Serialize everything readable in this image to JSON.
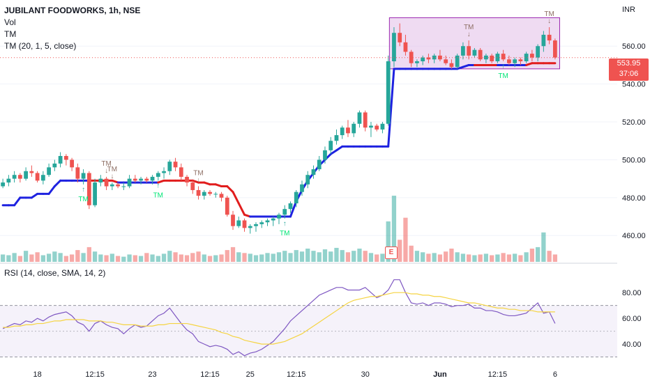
{
  "legend": {
    "title": "JUBILANT FOODWORKS, 1h, NSE",
    "vol": "Vol",
    "tm": "TM",
    "tm_params": "TM (20, 1, 5, close)"
  },
  "rsi_legend": "RSI (14, close, SMA, 14, 2)",
  "currency": "INR",
  "last_price": "553.95",
  "countdown": "37:06",
  "earnings_badge": "E",
  "colors": {
    "up": "#26a69a",
    "down": "#ef5350",
    "tm_up": "#1e22e0",
    "tm_down": "#e11d1d",
    "rsi_line": "#7e57c2",
    "rsi_sma": "#f5d442",
    "box_fill": "#e1bee7",
    "box_stroke": "#9c27b0"
  },
  "chart_data": [
    {
      "type": "candlestick",
      "title": "JUBILANT FOODWORKS, 1h, NSE",
      "currency": "INR",
      "y_ticks": [
        "460.00",
        "480.00",
        "500.00",
        "520.00",
        "540.00",
        "560.00"
      ],
      "ylim": [
        452,
        577
      ],
      "x_ticks": [
        "18",
        "12:15",
        "23",
        "12:15",
        "25",
        "12:15",
        "30",
        "Jun",
        "12:15",
        "6"
      ],
      "last_price": 553.95,
      "ohlc": [
        [
          486,
          490,
          485,
          488
        ],
        [
          488,
          492,
          486,
          490
        ],
        [
          490,
          494,
          488,
          492
        ],
        [
          492,
          493,
          488,
          490
        ],
        [
          490,
          496,
          489,
          494
        ],
        [
          494,
          497,
          491,
          493
        ],
        [
          493,
          494,
          488,
          489
        ],
        [
          489,
          494,
          487,
          492
        ],
        [
          492,
          498,
          491,
          496
        ],
        [
          496,
          500,
          494,
          498
        ],
        [
          498,
          504,
          496,
          502
        ],
        [
          502,
          503,
          497,
          500
        ],
        [
          500,
          501,
          494,
          496
        ],
        [
          496,
          498,
          488,
          490
        ],
        [
          490,
          495,
          487,
          493
        ],
        [
          493,
          494,
          474,
          476
        ],
        [
          476,
          490,
          475,
          488
        ],
        [
          488,
          492,
          486,
          490
        ],
        [
          490,
          491,
          484,
          486
        ],
        [
          486,
          488,
          484,
          487
        ],
        [
          487,
          488,
          485,
          486
        ],
        [
          486,
          488,
          484,
          486
        ],
        [
          486,
          492,
          485,
          490
        ],
        [
          490,
          492,
          488,
          489
        ],
        [
          489,
          491,
          487,
          490
        ],
        [
          490,
          491,
          488,
          489
        ],
        [
          489,
          492,
          487,
          491
        ],
        [
          491,
          494,
          489,
          493
        ],
        [
          493,
          496,
          490,
          494
        ],
        [
          494,
          500,
          492,
          499
        ],
        [
          499,
          501,
          494,
          496
        ],
        [
          496,
          498,
          489,
          491
        ],
        [
          491,
          492,
          486,
          488
        ],
        [
          488,
          489,
          482,
          484
        ],
        [
          484,
          486,
          479,
          481
        ],
        [
          481,
          484,
          479,
          483
        ],
        [
          483,
          484,
          481,
          482
        ],
        [
          482,
          483,
          480,
          482
        ],
        [
          482,
          483,
          478,
          480
        ],
        [
          480,
          481,
          470,
          471
        ],
        [
          471,
          473,
          463,
          465
        ],
        [
          465,
          470,
          464,
          468
        ],
        [
          468,
          469,
          462,
          464
        ],
        [
          464,
          466,
          461,
          465
        ],
        [
          465,
          467,
          462,
          466
        ],
        [
          466,
          468,
          464,
          467
        ],
        [
          467,
          469,
          465,
          468
        ],
        [
          468,
          470,
          465,
          469
        ],
        [
          469,
          472,
          466,
          471
        ],
        [
          471,
          476,
          469,
          474
        ],
        [
          474,
          478,
          472,
          477
        ],
        [
          477,
          484,
          475,
          483
        ],
        [
          483,
          489,
          481,
          487
        ],
        [
          487,
          494,
          485,
          492
        ],
        [
          492,
          497,
          490,
          495
        ],
        [
          495,
          502,
          494,
          500
        ],
        [
          500,
          507,
          498,
          505
        ],
        [
          505,
          512,
          503,
          510
        ],
        [
          510,
          516,
          508,
          513
        ],
        [
          513,
          518,
          511,
          517
        ],
        [
          517,
          521,
          512,
          514
        ],
        [
          514,
          520,
          512,
          519
        ],
        [
          519,
          526,
          517,
          525
        ],
        [
          525,
          526,
          515,
          517
        ],
        [
          517,
          520,
          512,
          518
        ],
        [
          518,
          519,
          515,
          516
        ],
        [
          516,
          520,
          514,
          519
        ],
        [
          519,
          555,
          518,
          552
        ],
        [
          552,
          570,
          549,
          567
        ],
        [
          567,
          572,
          560,
          562
        ],
        [
          562,
          566,
          555,
          557
        ],
        [
          557,
          558,
          549,
          551
        ],
        [
          551,
          553,
          549,
          552
        ],
        [
          552,
          555,
          550,
          554
        ],
        [
          554,
          556,
          551,
          553
        ],
        [
          553,
          556,
          551,
          555
        ],
        [
          555,
          558,
          552,
          553
        ],
        [
          553,
          555,
          550,
          551
        ],
        [
          551,
          553,
          548,
          549
        ],
        [
          549,
          556,
          548,
          555
        ],
        [
          555,
          562,
          553,
          560
        ],
        [
          560,
          563,
          553,
          555
        ],
        [
          555,
          559,
          554,
          558
        ],
        [
          558,
          559,
          552,
          553
        ],
        [
          553,
          556,
          551,
          555
        ],
        [
          555,
          556,
          551,
          552
        ],
        [
          552,
          557,
          551,
          556
        ],
        [
          556,
          558,
          552,
          553
        ],
        [
          553,
          555,
          550,
          551
        ],
        [
          551,
          554,
          549,
          553
        ],
        [
          553,
          554,
          550,
          552
        ],
        [
          552,
          557,
          551,
          556
        ],
        [
          556,
          558,
          552,
          554
        ],
        [
          554,
          561,
          552,
          560
        ],
        [
          560,
          568,
          557,
          566
        ],
        [
          566,
          570,
          561,
          563
        ],
        [
          563,
          564,
          553,
          554
        ]
      ],
      "volume": [
        1.0,
        0.9,
        1.2,
        0.8,
        1.5,
        1.0,
        1.3,
        0.9,
        1.1,
        1.4,
        1.2,
        0.8,
        1.0,
        1.6,
        1.2,
        2.0,
        1.4,
        1.0,
        0.9,
        1.1,
        0.8,
        0.7,
        1.0,
        0.9,
        0.8,
        1.2,
        1.0,
        0.8,
        1.1,
        1.5,
        1.3,
        1.0,
        0.9,
        1.2,
        1.4,
        1.0,
        0.8,
        0.9,
        1.0,
        1.6,
        2.0,
        1.3,
        1.2,
        1.1,
        0.9,
        1.0,
        1.2,
        1.1,
        1.3,
        1.5,
        1.2,
        1.6,
        1.4,
        1.8,
        1.5,
        1.3,
        1.7,
        1.4,
        1.9,
        1.6,
        1.3,
        1.5,
        1.8,
        1.5,
        1.2,
        1.0,
        1.1,
        5.5,
        9.0,
        3.0,
        6.0,
        2.2,
        1.5,
        1.3,
        1.1,
        1.2,
        1.0,
        1.4,
        1.8,
        1.3,
        1.1,
        1.0,
        0.9,
        1.0,
        1.1,
        0.9,
        1.0,
        1.2,
        1.0,
        1.1,
        0.9,
        1.3,
        1.8,
        2.0,
        4.0,
        1.5,
        1.0
      ],
      "tm_line": [
        476,
        476,
        476,
        480,
        480,
        480,
        482,
        482,
        482,
        486,
        489,
        489,
        489,
        489,
        489,
        489,
        489,
        489,
        489,
        489,
        488,
        488,
        488,
        488,
        488,
        488,
        488,
        488,
        489,
        489,
        489,
        489,
        489,
        489,
        488,
        488,
        487,
        487,
        486,
        486,
        483,
        477,
        471,
        470,
        470,
        470,
        470,
        470,
        470,
        470,
        470,
        478,
        484,
        489,
        493,
        497,
        500,
        503,
        505,
        507,
        507,
        507,
        507,
        507,
        507,
        507,
        507,
        507,
        548,
        548,
        548,
        548,
        548,
        548,
        548,
        548,
        548,
        548,
        548,
        548,
        549,
        550,
        550,
        550,
        550,
        550,
        550,
        550,
        550,
        550,
        550,
        550,
        551,
        551,
        551,
        551,
        551
      ],
      "tm_up": [
        true,
        true,
        true,
        true,
        true,
        true,
        true,
        true,
        true,
        true,
        true,
        true,
        true,
        true,
        true,
        true,
        false,
        false,
        false,
        false,
        false,
        true,
        true,
        true,
        true,
        true,
        true,
        true,
        false,
        false,
        false,
        false,
        false,
        false,
        false,
        false,
        false,
        false,
        false,
        false,
        false,
        false,
        false,
        false,
        true,
        true,
        true,
        true,
        true,
        true,
        true,
        true,
        true,
        true,
        true,
        true,
        true,
        true,
        true,
        true,
        true,
        true,
        true,
        true,
        true,
        true,
        true,
        true,
        true,
        true,
        true,
        true,
        true,
        true,
        true,
        true,
        true,
        true,
        true,
        true,
        true,
        true,
        true,
        false,
        false,
        false,
        false,
        true,
        true,
        true,
        true,
        true,
        false,
        false,
        false,
        false,
        false
      ],
      "signals": [
        {
          "index": 14,
          "type": "buy",
          "label": "TM"
        },
        {
          "index": 18,
          "type": "sell",
          "label": "TM"
        },
        {
          "index": 19,
          "type": "sell",
          "label": "TM"
        },
        {
          "index": 27,
          "type": "buy",
          "label": "TM"
        },
        {
          "index": 34,
          "type": "sell",
          "label": "TM"
        },
        {
          "index": 49,
          "type": "buy",
          "label": "TM"
        },
        {
          "index": 81,
          "type": "sell",
          "label": "TM"
        },
        {
          "index": 87,
          "type": "buy",
          "label": "TM"
        },
        {
          "index": 95,
          "type": "sell",
          "label": "TM"
        }
      ],
      "highlight_box": {
        "from_index": 68,
        "to_index": 96,
        "low": 548,
        "high": 575
      }
    },
    {
      "type": "line",
      "title": "RSI (14, close, SMA, 14, 2)",
      "y_ticks": [
        "40.00",
        "60.00",
        "80.00"
      ],
      "ylim": [
        26,
        92
      ],
      "bands": [
        30,
        50,
        70
      ],
      "series": [
        {
          "name": "RSI",
          "values": [
            52,
            54,
            56,
            55,
            58,
            57,
            60,
            58,
            61,
            63,
            64,
            65,
            62,
            57,
            55,
            50,
            56,
            58,
            55,
            53,
            52,
            48,
            52,
            55,
            53,
            54,
            58,
            62,
            64,
            68,
            62,
            56,
            51,
            48,
            42,
            40,
            38,
            39,
            38,
            36,
            32,
            34,
            31,
            33,
            34,
            36,
            39,
            42,
            47,
            52,
            58,
            62,
            66,
            70,
            74,
            78,
            80,
            82,
            84,
            84,
            82,
            82,
            82,
            84,
            80,
            76,
            78,
            82,
            90,
            90,
            80,
            72,
            71,
            72,
            70,
            72,
            72,
            71,
            69,
            70,
            70,
            71,
            68,
            68,
            66,
            66,
            65,
            63,
            62,
            62,
            63,
            64,
            68,
            72,
            64,
            65,
            56
          ]
        },
        {
          "name": "SMA",
          "values": [
            53,
            53,
            54,
            54,
            55,
            55,
            56,
            56,
            57,
            58,
            58,
            59,
            59,
            59,
            59,
            58,
            58,
            58,
            57,
            57,
            56,
            55,
            55,
            55,
            54,
            54,
            54,
            55,
            55,
            56,
            56,
            56,
            56,
            55,
            54,
            53,
            52,
            51,
            49,
            48,
            46,
            45,
            43,
            42,
            41,
            40,
            40,
            40,
            41,
            42,
            44,
            46,
            48,
            51,
            54,
            57,
            60,
            63,
            66,
            69,
            72,
            74,
            75,
            76,
            77,
            77,
            78,
            79,
            80,
            80,
            80,
            79,
            79,
            78,
            78,
            77,
            77,
            76,
            75,
            74,
            73,
            72,
            72,
            71,
            70,
            69,
            68,
            68,
            67,
            67,
            66,
            66,
            66,
            65,
            65,
            65,
            65
          ]
        }
      ]
    }
  ]
}
